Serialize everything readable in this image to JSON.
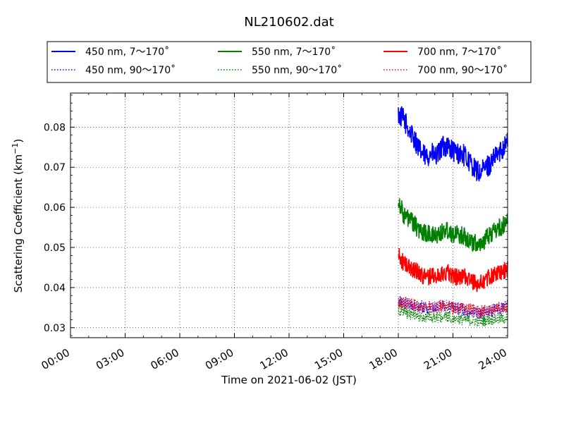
{
  "chart_data": {
    "type": "line",
    "title": "NL210602.dat",
    "xlabel": "Time on 2021-06-02 (JST)",
    "ylabel_main": "Scattering Coefficient (km",
    "ylabel_sup": "−1",
    "ylabel_tail": ")",
    "xlim_hours": [
      0,
      24
    ],
    "ylim": [
      0.0275,
      0.0885
    ],
    "x_ticks": [
      {
        "hour": 0,
        "label": "00:00"
      },
      {
        "hour": 3,
        "label": "03:00"
      },
      {
        "hour": 6,
        "label": "06:00"
      },
      {
        "hour": 9,
        "label": "09:00"
      },
      {
        "hour": 12,
        "label": "12:00"
      },
      {
        "hour": 15,
        "label": "15:00"
      },
      {
        "hour": 18,
        "label": "18:00"
      },
      {
        "hour": 21,
        "label": "21:00"
      },
      {
        "hour": 24,
        "label": "24:00"
      }
    ],
    "y_ticks": [
      {
        "value": 0.03,
        "label": "0.03"
      },
      {
        "value": 0.04,
        "label": "0.04"
      },
      {
        "value": 0.05,
        "label": "0.05"
      },
      {
        "value": 0.06,
        "label": "0.06"
      },
      {
        "value": 0.07,
        "label": "0.07"
      },
      {
        "value": 0.08,
        "label": "0.08"
      }
    ],
    "grid": true,
    "legend_position": "top, above plot, 3 columns",
    "series": [
      {
        "name": "450 nm, 7～170˚",
        "color": "#0000ff",
        "style": "solid",
        "x": [
          18.0,
          18.3,
          18.6,
          18.9,
          19.2,
          19.5,
          19.8,
          20.1,
          20.4,
          20.7,
          21.0,
          21.3,
          21.6,
          21.9,
          22.2,
          22.5,
          22.8,
          23.1,
          23.4,
          23.7,
          24.0
        ],
        "y": [
          0.083,
          0.082,
          0.079,
          0.077,
          0.074,
          0.0725,
          0.0735,
          0.0725,
          0.075,
          0.0755,
          0.074,
          0.0735,
          0.073,
          0.0715,
          0.0695,
          0.0685,
          0.07,
          0.071,
          0.073,
          0.0745,
          0.077
        ]
      },
      {
        "name": "550 nm, 7～170˚",
        "color": "#008000",
        "style": "solid",
        "x": [
          18.0,
          18.3,
          18.6,
          18.9,
          19.2,
          19.5,
          19.8,
          20.1,
          20.4,
          20.7,
          21.0,
          21.3,
          21.6,
          21.9,
          22.2,
          22.5,
          22.8,
          23.1,
          23.4,
          23.7,
          24.0
        ],
        "y": [
          0.062,
          0.058,
          0.057,
          0.0555,
          0.054,
          0.0535,
          0.053,
          0.053,
          0.054,
          0.0545,
          0.0535,
          0.053,
          0.053,
          0.052,
          0.051,
          0.051,
          0.052,
          0.0535,
          0.0545,
          0.055,
          0.057
        ]
      },
      {
        "name": "700 nm, 7～170˚",
        "color": "#ff0000",
        "style": "solid",
        "x": [
          18.0,
          18.3,
          18.6,
          18.9,
          19.2,
          19.5,
          19.8,
          20.1,
          20.4,
          20.7,
          21.0,
          21.3,
          21.6,
          21.9,
          22.2,
          22.5,
          22.8,
          23.1,
          23.4,
          23.7,
          24.0
        ],
        "y": [
          0.048,
          0.046,
          0.045,
          0.0445,
          0.0435,
          0.0425,
          0.043,
          0.0425,
          0.0435,
          0.044,
          0.043,
          0.0425,
          0.043,
          0.042,
          0.041,
          0.041,
          0.042,
          0.043,
          0.0435,
          0.044,
          0.0445
        ]
      },
      {
        "name": "450 nm, 90～170˚",
        "color": "#0000ff",
        "style": "dotted",
        "x": [
          18.0,
          18.5,
          19.0,
          19.5,
          20.0,
          20.5,
          21.0,
          21.5,
          22.0,
          22.5,
          23.0,
          23.5,
          24.0
        ],
        "y": [
          0.0365,
          0.036,
          0.0355,
          0.035,
          0.035,
          0.0355,
          0.035,
          0.0345,
          0.034,
          0.0335,
          0.034,
          0.0345,
          0.0355
        ]
      },
      {
        "name": "550 nm, 90～170˚",
        "color": "#008000",
        "style": "dotted",
        "x": [
          18.0,
          18.5,
          19.0,
          19.5,
          20.0,
          20.5,
          21.0,
          21.5,
          22.0,
          22.5,
          23.0,
          23.5,
          24.0
        ],
        "y": [
          0.0345,
          0.0335,
          0.033,
          0.0325,
          0.0325,
          0.0328,
          0.0325,
          0.032,
          0.0318,
          0.0315,
          0.032,
          0.0322,
          0.0325
        ]
      },
      {
        "name": "700 nm, 90～170˚",
        "color": "#ff0000",
        "style": "dotted",
        "x": [
          18.0,
          18.5,
          19.0,
          19.5,
          20.0,
          20.5,
          21.0,
          21.5,
          22.0,
          22.5,
          23.0,
          23.5,
          24.0
        ],
        "y": [
          0.0365,
          0.036,
          0.0355,
          0.0355,
          0.035,
          0.0355,
          0.035,
          0.035,
          0.0345,
          0.034,
          0.0345,
          0.035,
          0.035
        ]
      }
    ]
  }
}
